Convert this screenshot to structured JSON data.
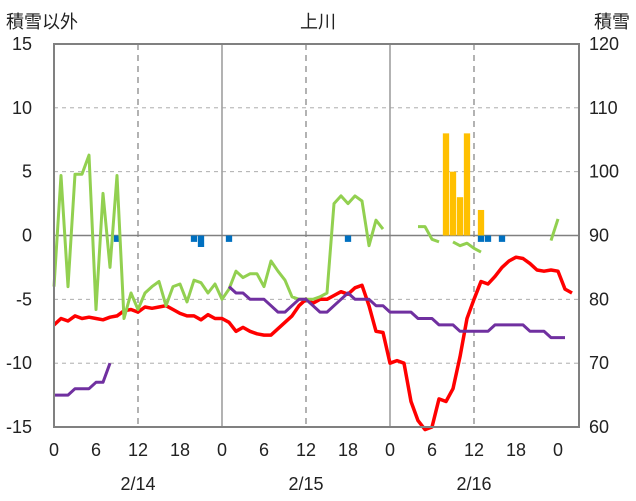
{
  "chart_data": {
    "type": "line",
    "title": "上川",
    "ylabel_left": "積雪以外",
    "ylabel_right": "積雪",
    "left_ylim": [
      -15,
      15
    ],
    "right_ylim": [
      60,
      120
    ],
    "left_ticks": [
      "15",
      "10",
      "5",
      "0",
      "-5",
      "-10",
      "-15"
    ],
    "right_ticks": [
      "120",
      "110",
      "100",
      "90",
      "80",
      "70",
      "60"
    ],
    "x_hour_labels": [
      "0",
      "12",
      "18",
      "0",
      "6",
      "12",
      "18",
      "0",
      "6",
      "12",
      "18",
      "0"
    ],
    "x_hour_tick_extra": "6",
    "x_dates": [
      "2/14",
      "2/15",
      "2/16"
    ],
    "grid": true,
    "colors": {
      "temperature": "#ff0000",
      "green": "#92d050",
      "snow_depth": "#7030a0",
      "snowfall": "#ffc000",
      "precip": "#0070c0"
    },
    "series": [
      {
        "key": "temperature",
        "axis": "left",
        "values": [
          [
            0,
            -7.0
          ],
          [
            1,
            -6.5
          ],
          [
            2,
            -6.7
          ],
          [
            3,
            -6.3
          ],
          [
            4,
            -6.5
          ],
          [
            5,
            -6.4
          ],
          [
            6,
            -6.5
          ],
          [
            7,
            -6.6
          ],
          [
            8,
            -6.4
          ],
          [
            9,
            -6.3
          ],
          [
            10,
            -5.9
          ],
          [
            11,
            -5.8
          ],
          [
            12,
            -6.0
          ],
          [
            13,
            -5.6
          ],
          [
            14,
            -5.7
          ],
          [
            15,
            -5.6
          ],
          [
            16,
            -5.5
          ],
          [
            17,
            -5.8
          ],
          [
            18,
            -6.1
          ],
          [
            19,
            -6.3
          ],
          [
            20,
            -6.3
          ],
          [
            21,
            -6.6
          ],
          [
            22,
            -6.2
          ],
          [
            23,
            -6.5
          ],
          [
            24,
            -6.5
          ],
          [
            25,
            -6.8
          ],
          [
            26,
            -7.5
          ],
          [
            27,
            -7.2
          ],
          [
            28,
            -7.5
          ],
          [
            29,
            -7.7
          ],
          [
            30,
            -7.8
          ],
          [
            31,
            -7.8
          ],
          [
            32,
            -7.3
          ],
          [
            33,
            -6.8
          ],
          [
            34,
            -6.3
          ],
          [
            35,
            -5.5
          ],
          [
            36,
            -5.0
          ],
          [
            37,
            -5.3
          ],
          [
            38,
            -5.0
          ],
          [
            39,
            -5.0
          ],
          [
            40,
            -4.7
          ],
          [
            41,
            -4.4
          ],
          [
            42,
            -4.6
          ],
          [
            43,
            -4.1
          ],
          [
            44,
            -3.9
          ],
          [
            45,
            -5.5
          ],
          [
            46,
            -7.5
          ],
          [
            47,
            -7.6
          ],
          [
            48,
            -10.0
          ],
          [
            49,
            -9.8
          ],
          [
            50,
            -10.0
          ],
          [
            51,
            -13.0
          ],
          [
            52,
            -14.5
          ],
          [
            53,
            -15.2
          ],
          [
            54,
            -15.0
          ],
          [
            55,
            -12.8
          ],
          [
            56,
            -13.0
          ],
          [
            57,
            -12.0
          ],
          [
            58,
            -9.5
          ],
          [
            59,
            -6.5
          ],
          [
            60,
            -5.0
          ],
          [
            61,
            -3.6
          ],
          [
            62,
            -3.8
          ],
          [
            63,
            -3.2
          ],
          [
            64,
            -2.5
          ],
          [
            65,
            -2.0
          ],
          [
            66,
            -1.7
          ],
          [
            67,
            -1.8
          ],
          [
            68,
            -2.2
          ],
          [
            69,
            -2.7
          ],
          [
            70,
            -2.8
          ],
          [
            71,
            -2.7
          ],
          [
            72,
            -2.8
          ],
          [
            73,
            -4.2
          ],
          [
            74,
            -4.5
          ]
        ]
      },
      {
        "key": "green",
        "axis": "left",
        "values": [
          [
            0,
            -4.0
          ],
          [
            1,
            4.7
          ],
          [
            2,
            -4.0
          ],
          [
            3,
            4.8
          ],
          [
            4,
            4.8
          ],
          [
            5,
            6.3
          ],
          [
            6,
            -5.8
          ],
          [
            7,
            3.3
          ],
          [
            8,
            -2.5
          ],
          [
            9,
            4.7
          ],
          [
            10,
            -6.5
          ],
          [
            11,
            -4.5
          ],
          [
            12,
            -5.8
          ],
          [
            13,
            -4.5
          ],
          [
            14,
            -4.0
          ],
          [
            15,
            -3.6
          ],
          [
            16,
            -5.5
          ],
          [
            17,
            -4.0
          ],
          [
            18,
            -3.8
          ],
          [
            19,
            -5.2
          ],
          [
            20,
            -3.5
          ],
          [
            21,
            -3.7
          ],
          [
            22,
            -4.5
          ],
          [
            23,
            -3.8
          ],
          [
            24,
            -5.0
          ],
          [
            25,
            -4.2
          ],
          [
            26,
            -2.8
          ],
          [
            27,
            -3.3
          ],
          [
            28,
            -3.0
          ],
          [
            29,
            -3.0
          ],
          [
            30,
            -4.0
          ],
          [
            31,
            -2.0
          ],
          [
            32,
            -2.8
          ],
          [
            33,
            -3.5
          ],
          [
            34,
            -4.8
          ],
          [
            35,
            -5.0
          ],
          [
            36,
            -5.0
          ],
          [
            37,
            -5.0
          ],
          [
            38,
            -4.8
          ],
          [
            39,
            -4.5
          ],
          [
            40,
            2.5
          ],
          [
            41,
            3.1
          ],
          [
            42,
            2.5
          ],
          [
            43,
            3.1
          ],
          [
            44,
            2.7
          ],
          [
            45,
            -0.8
          ],
          [
            46,
            1.2
          ],
          [
            47,
            0.5
          ],
          null,
          null,
          null,
          null,
          [
            52,
            0.7
          ],
          [
            53,
            0.7
          ],
          [
            54,
            -0.3
          ],
          [
            55,
            -0.5
          ],
          null,
          [
            57,
            -0.5
          ],
          [
            58,
            -0.8
          ],
          [
            59,
            -0.6
          ],
          [
            60,
            -1.0
          ],
          [
            61,
            -1.3
          ],
          null,
          null,
          null,
          null,
          null,
          null,
          null,
          null,
          null,
          [
            71,
            -0.4
          ],
          [
            72,
            1.3
          ]
        ]
      },
      {
        "key": "snow_depth",
        "axis": "right",
        "values": [
          [
            0,
            65
          ],
          [
            1,
            65
          ],
          [
            2,
            65
          ],
          [
            3,
            66
          ],
          [
            4,
            66
          ],
          [
            5,
            66
          ],
          [
            6,
            67
          ],
          [
            7,
            67
          ],
          [
            8,
            70
          ],
          null,
          null,
          null,
          null,
          null,
          null,
          null,
          null,
          null,
          null,
          null,
          null,
          null,
          null,
          null,
          [
            25,
            82
          ],
          [
            26,
            81
          ],
          [
            27,
            81
          ],
          [
            28,
            80
          ],
          [
            29,
            80
          ],
          [
            30,
            80
          ],
          [
            31,
            79
          ],
          [
            32,
            78
          ],
          [
            33,
            78
          ],
          [
            34,
            79
          ],
          [
            35,
            80
          ],
          [
            36,
            80
          ],
          [
            37,
            79
          ],
          [
            38,
            78
          ],
          [
            39,
            78
          ],
          [
            40,
            79
          ],
          [
            41,
            80
          ],
          [
            42,
            81
          ],
          [
            43,
            80
          ],
          [
            44,
            80
          ],
          [
            45,
            80
          ],
          [
            46,
            79
          ],
          [
            47,
            79
          ],
          [
            48,
            78
          ],
          [
            49,
            78
          ],
          [
            50,
            78
          ],
          [
            51,
            78
          ],
          [
            52,
            77
          ],
          [
            53,
            77
          ],
          [
            54,
            77
          ],
          [
            55,
            76
          ],
          [
            56,
            76
          ],
          [
            57,
            76
          ],
          [
            58,
            75
          ],
          [
            59,
            75
          ],
          [
            60,
            75
          ],
          [
            61,
            75
          ],
          [
            62,
            75
          ],
          [
            63,
            76
          ],
          [
            64,
            76
          ],
          [
            65,
            76
          ],
          [
            66,
            76
          ],
          [
            67,
            76
          ],
          [
            68,
            75
          ],
          [
            69,
            75
          ],
          [
            70,
            75
          ],
          [
            71,
            74
          ],
          [
            72,
            74
          ],
          [
            73,
            74
          ]
        ]
      },
      {
        "key": "snowfall",
        "axis": "left",
        "type": "bar",
        "values": [
          [
            56,
            8
          ],
          [
            57,
            5
          ],
          [
            58,
            3
          ],
          [
            59,
            8
          ],
          [
            61,
            2
          ]
        ]
      },
      {
        "key": "precip",
        "axis": "left",
        "type": "bar",
        "values": [
          [
            9,
            -0.5
          ],
          [
            20,
            -0.5
          ],
          [
            21,
            -0.9
          ],
          [
            25,
            -0.5
          ],
          [
            42,
            -0.5
          ],
          [
            61,
            -0.5
          ],
          [
            62,
            -0.5
          ],
          [
            64,
            -0.5
          ]
        ]
      }
    ]
  }
}
